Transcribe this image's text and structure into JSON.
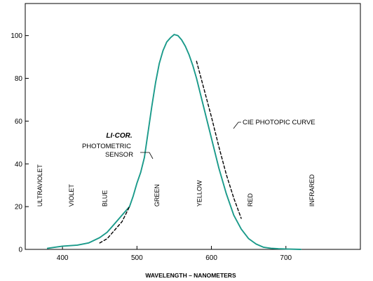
{
  "chart_data": {
    "type": "line",
    "title": "",
    "xlabel": "WAVELENGTH – NANOMETERS",
    "ylabel": "",
    "xlim": [
      350,
      800
    ],
    "ylim": [
      0,
      115
    ],
    "x_ticks": [
      400,
      500,
      600,
      700
    ],
    "y_ticks": [
      0,
      20,
      40,
      60,
      80,
      100
    ],
    "grid": false,
    "logo_text": "LI·COR.",
    "series": [
      {
        "name": "PHOTOMETRIC SENSOR",
        "style": "solid",
        "color": "#1a9a8a",
        "x": [
          380,
          400,
          420,
          435,
          450,
          460,
          470,
          480,
          490,
          495,
          500,
          505,
          510,
          515,
          520,
          525,
          530,
          535,
          540,
          545,
          550,
          555,
          560,
          565,
          570,
          575,
          580,
          590,
          600,
          610,
          620,
          630,
          640,
          650,
          660,
          670,
          680,
          690,
          700,
          720
        ],
        "y": [
          0.5,
          1.5,
          2,
          3,
          5.5,
          8,
          12,
          16,
          20,
          25,
          31,
          36,
          43,
          55,
          67,
          78,
          87,
          93,
          97,
          99,
          100.5,
          100,
          98,
          95,
          91,
          86,
          80,
          66,
          52,
          38,
          26,
          16,
          9.5,
          5,
          2.5,
          1,
          0.5,
          0.3,
          0.2,
          0
        ]
      },
      {
        "name": "CIE PHOTOPIC CURVE",
        "style": "dashed",
        "color": "#000000",
        "x": [
          450,
          460,
          470,
          480,
          490,
          580,
          590,
          600,
          610,
          620,
          630,
          640
        ],
        "y": [
          3,
          5,
          9,
          13,
          20,
          88,
          75,
          62,
          48,
          35,
          24,
          14.5
        ]
      }
    ],
    "annotations": [
      {
        "lines": [
          "PHOTOMETRIC",
          "SENSOR"
        ]
      },
      {
        "lines": [
          "CIE PHOTOPIC CURVE"
        ]
      }
    ],
    "bands": [
      {
        "label": "ULTRAVIOLET",
        "x": 370
      },
      {
        "label": "VIOLET",
        "x": 412
      },
      {
        "label": "BLUE",
        "x": 457
      },
      {
        "label": "GREEN",
        "x": 527
      },
      {
        "label": "YELLOW",
        "x": 584
      },
      {
        "label": "RED",
        "x": 652
      },
      {
        "label": "INFRARED",
        "x": 735
      }
    ],
    "legend": "none"
  }
}
